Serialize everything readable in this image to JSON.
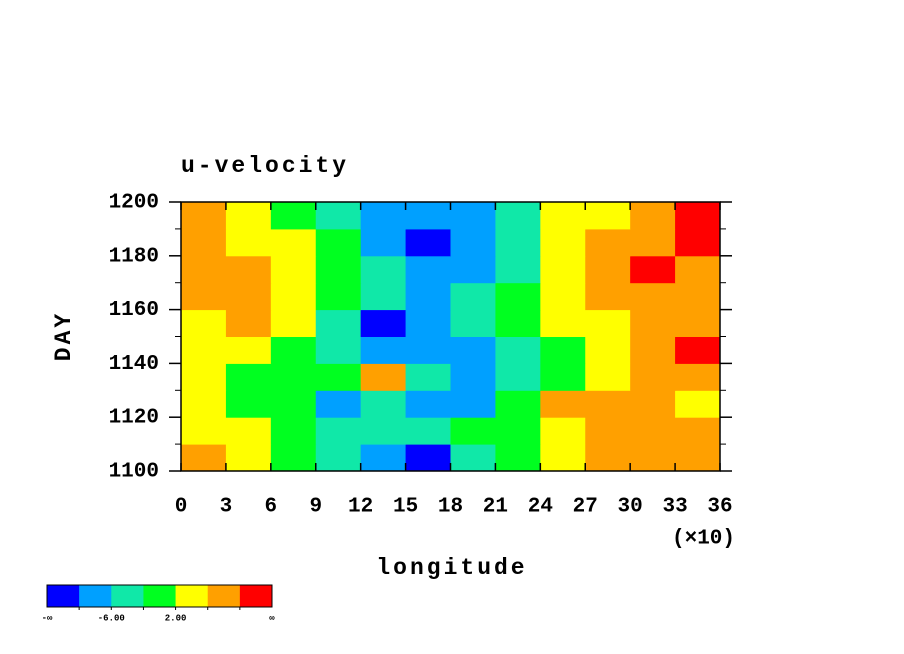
{
  "chart_data": {
    "type": "heatmap",
    "title": "u-velocity",
    "xlabel": "longitude",
    "ylabel": "DAY",
    "x_factor_label": "(×10)",
    "xlim": [
      0,
      36
    ],
    "xticks": [
      0,
      3,
      6,
      9,
      12,
      15,
      18,
      21,
      24,
      27,
      30,
      33,
      36
    ],
    "ylim": [
      1100,
      1200
    ],
    "yticks": [
      1100,
      1120,
      1140,
      1160,
      1180,
      1200
    ],
    "x": [
      1.5,
      4.5,
      7.5,
      10.5,
      13.5,
      16.5,
      19.5,
      22.5,
      25.5,
      28.5,
      31.5,
      34.5
    ],
    "y": [
      1105,
      1115,
      1125,
      1135,
      1145,
      1155,
      1165,
      1175,
      1185,
      1195
    ],
    "z": [
      [
        6,
        3,
        1,
        -4,
        -9,
        -11,
        -5,
        0,
        4,
        6,
        9,
        8
      ],
      [
        4,
        2,
        0,
        -3,
        -3,
        -6,
        -2,
        1,
        4,
        8,
        9,
        6
      ],
      [
        3,
        0,
        -2,
        -8,
        -5,
        -8,
        -9,
        -1,
        6,
        9,
        6,
        5
      ],
      [
        2,
        -1,
        1,
        0,
        8,
        -3,
        -9,
        -6,
        1,
        3,
        9,
        9
      ],
      [
        3,
        2,
        0,
        -4,
        -7,
        -7,
        -9,
        -3,
        1,
        4,
        9,
        10
      ],
      [
        5,
        7,
        3,
        -6,
        -11,
        -9,
        -6,
        -2,
        2,
        5,
        6,
        6
      ],
      [
        6,
        7,
        5,
        -1,
        -4,
        -9,
        -5,
        -1,
        3,
        7,
        9,
        7
      ],
      [
        8,
        6,
        3,
        -1,
        -6,
        -9,
        -7,
        -3,
        2,
        7,
        10,
        8
      ],
      [
        9,
        5,
        2,
        -2,
        -9,
        -11,
        -9,
        -4,
        3,
        6,
        9,
        10
      ],
      [
        9,
        4,
        1,
        -3,
        -9,
        -9,
        -9,
        -3,
        2,
        5,
        9,
        11
      ]
    ],
    "colorbar": {
      "levels": [
        -10,
        -6,
        -2,
        2,
        6,
        10
      ],
      "colors": [
        "#0000ff",
        "#00a0ff",
        "#10e8a8",
        "#00ff20",
        "#ffff00",
        "#ffa000",
        "#ff0000"
      ],
      "ticks": [
        {
          "value": -6,
          "label": "-6.00"
        },
        {
          "value": 2,
          "label": "2.00"
        }
      ],
      "low_label": "-∞",
      "high_label": "∞"
    }
  }
}
